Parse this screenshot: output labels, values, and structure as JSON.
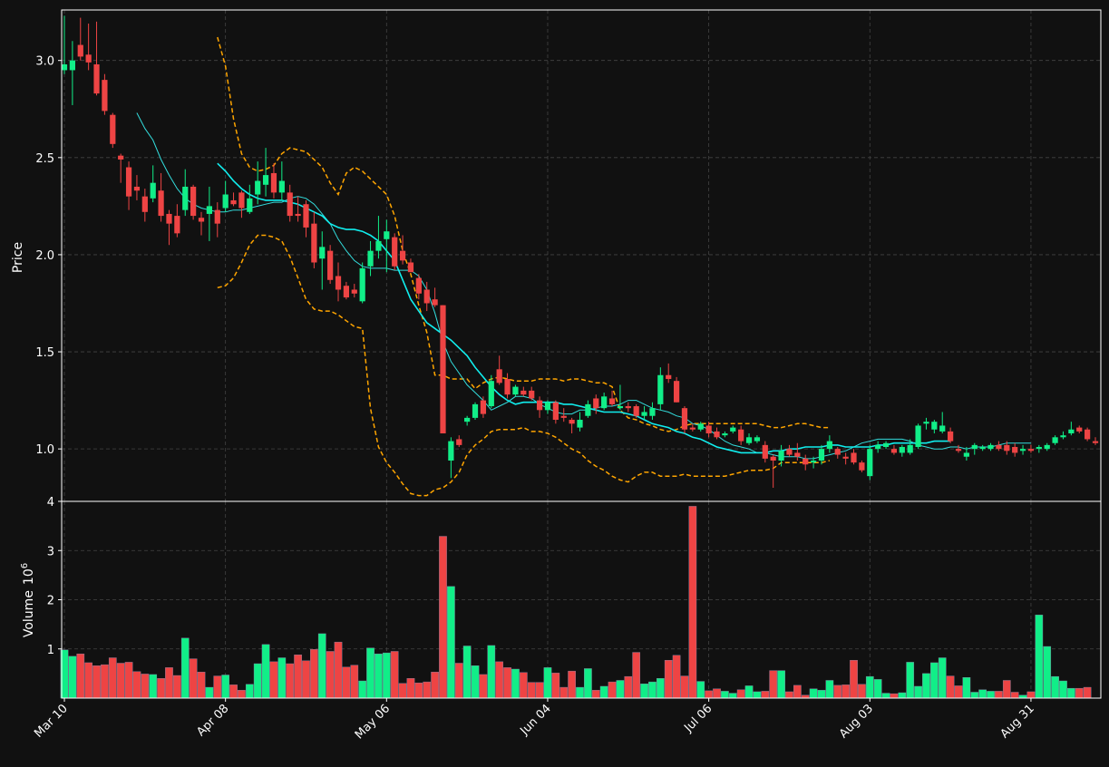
{
  "chart_data": {
    "type": "candlestick",
    "panels": [
      {
        "name": "price",
        "ylabel": "Price",
        "ylim": [
          0.73,
          3.26
        ],
        "yticks": [
          1.0,
          1.5,
          2.0,
          2.5,
          3.0
        ],
        "ytick_labels": [
          "1.0",
          "1.5",
          "2.0",
          "2.5",
          "3.0"
        ]
      },
      {
        "name": "volume",
        "ylabel": "Volume",
        "ylabel_suffix": "10",
        "ylabel_exp": "6",
        "ylim": [
          0,
          4.0
        ],
        "yticks": [
          1,
          2,
          3,
          4
        ],
        "ytick_labels": [
          "1",
          "2",
          "3",
          "4"
        ]
      }
    ],
    "grid": true,
    "x_tick_labels": [
      {
        "index": 0,
        "label": "Mar 10"
      },
      {
        "index": 20,
        "label": "Apr 08"
      },
      {
        "index": 40,
        "label": "May 06"
      },
      {
        "index": 60,
        "label": "Jun 04"
      },
      {
        "index": 80,
        "label": "Jul 06"
      },
      {
        "index": 100,
        "label": "Aug 03"
      },
      {
        "index": 120,
        "label": "Aug 31"
      }
    ],
    "colors": {
      "up": "#11ee88",
      "down": "#ee4444",
      "ma_fast": "#33dddd",
      "ma_slow": "#11eeee",
      "bands": "#ffa500",
      "background": "#111111",
      "grid": "#444444"
    },
    "ohlc": [
      [
        2.95,
        3.23,
        2.93,
        2.98
      ],
      [
        2.95,
        3.1,
        2.77,
        3.0
      ],
      [
        3.08,
        3.22,
        3.0,
        3.02
      ],
      [
        3.03,
        3.19,
        2.95,
        2.99
      ],
      [
        2.98,
        3.2,
        2.82,
        2.83
      ],
      [
        2.9,
        2.93,
        2.72,
        2.74
      ],
      [
        2.72,
        2.73,
        2.55,
        2.57
      ],
      [
        2.51,
        2.52,
        2.37,
        2.49
      ],
      [
        2.45,
        2.48,
        2.23,
        2.3
      ],
      [
        2.35,
        2.41,
        2.28,
        2.33
      ],
      [
        2.3,
        2.34,
        2.17,
        2.22
      ],
      [
        2.29,
        2.46,
        2.27,
        2.37
      ],
      [
        2.33,
        2.42,
        2.17,
        2.2
      ],
      [
        2.21,
        2.23,
        2.05,
        2.16
      ],
      [
        2.2,
        2.26,
        2.09,
        2.11
      ],
      [
        2.23,
        2.44,
        2.2,
        2.35
      ],
      [
        2.35,
        2.36,
        2.18,
        2.2
      ],
      [
        2.19,
        2.22,
        2.1,
        2.17
      ],
      [
        2.21,
        2.35,
        2.07,
        2.25
      ],
      [
        2.23,
        2.27,
        2.09,
        2.16
      ],
      [
        2.24,
        2.38,
        2.22,
        2.31
      ],
      [
        2.28,
        2.32,
        2.25,
        2.26
      ],
      [
        2.32,
        2.33,
        2.19,
        2.24
      ],
      [
        2.22,
        2.36,
        2.21,
        2.29
      ],
      [
        2.31,
        2.48,
        2.26,
        2.38
      ],
      [
        2.36,
        2.55,
        2.3,
        2.41
      ],
      [
        2.42,
        2.47,
        2.29,
        2.32
      ],
      [
        2.32,
        2.48,
        2.28,
        2.38
      ],
      [
        2.32,
        2.36,
        2.17,
        2.2
      ],
      [
        2.21,
        2.3,
        2.17,
        2.2
      ],
      [
        2.26,
        2.28,
        2.09,
        2.14
      ],
      [
        2.16,
        2.22,
        1.93,
        1.96
      ],
      [
        1.98,
        2.12,
        1.82,
        2.04
      ],
      [
        2.02,
        2.05,
        1.85,
        1.87
      ],
      [
        1.89,
        1.96,
        1.76,
        1.82
      ],
      [
        1.84,
        1.86,
        1.77,
        1.78
      ],
      [
        1.82,
        1.85,
        1.78,
        1.8
      ],
      [
        1.76,
        1.96,
        1.75,
        1.93
      ],
      [
        1.94,
        2.07,
        1.89,
        2.02
      ],
      [
        2.02,
        2.2,
        1.98,
        2.07
      ],
      [
        2.08,
        2.18,
        1.91,
        2.12
      ],
      [
        2.09,
        2.11,
        1.92,
        1.94
      ],
      [
        2.02,
        2.1,
        1.95,
        1.97
      ],
      [
        1.96,
        1.98,
        1.91,
        1.91
      ],
      [
        1.88,
        1.9,
        1.77,
        1.8
      ],
      [
        1.82,
        1.86,
        1.71,
        1.75
      ],
      [
        1.77,
        1.83,
        1.73,
        1.74
      ],
      [
        1.74,
        1.74,
        1.08,
        1.08
      ],
      [
        0.94,
        1.06,
        0.85,
        1.04
      ],
      [
        1.05,
        1.07,
        1.01,
        1.02
      ],
      [
        1.14,
        1.17,
        1.12,
        1.16
      ],
      [
        1.16,
        1.24,
        1.15,
        1.23
      ],
      [
        1.25,
        1.27,
        1.16,
        1.18
      ],
      [
        1.22,
        1.38,
        1.21,
        1.35
      ],
      [
        1.41,
        1.48,
        1.33,
        1.34
      ],
      [
        1.36,
        1.39,
        1.26,
        1.28
      ],
      [
        1.28,
        1.33,
        1.27,
        1.32
      ],
      [
        1.3,
        1.32,
        1.27,
        1.28
      ],
      [
        1.3,
        1.32,
        1.25,
        1.26
      ],
      [
        1.25,
        1.27,
        1.16,
        1.2
      ],
      [
        1.2,
        1.25,
        1.18,
        1.24
      ],
      [
        1.24,
        1.25,
        1.13,
        1.15
      ],
      [
        1.17,
        1.21,
        1.14,
        1.16
      ],
      [
        1.15,
        1.16,
        1.08,
        1.13
      ],
      [
        1.11,
        1.19,
        1.09,
        1.15
      ],
      [
        1.17,
        1.25,
        1.16,
        1.23
      ],
      [
        1.26,
        1.28,
        1.18,
        1.21
      ],
      [
        1.21,
        1.29,
        1.2,
        1.27
      ],
      [
        1.26,
        1.3,
        1.22,
        1.23
      ],
      [
        1.21,
        1.33,
        1.2,
        1.22
      ],
      [
        1.22,
        1.24,
        1.19,
        1.21
      ],
      [
        1.22,
        1.23,
        1.16,
        1.17
      ],
      [
        1.17,
        1.22,
        1.15,
        1.19
      ],
      [
        1.17,
        1.24,
        1.15,
        1.21
      ],
      [
        1.23,
        1.42,
        1.2,
        1.38
      ],
      [
        1.38,
        1.44,
        1.34,
        1.36
      ],
      [
        1.35,
        1.37,
        1.24,
        1.24
      ],
      [
        1.21,
        1.22,
        1.08,
        1.1
      ],
      [
        1.11,
        1.13,
        1.09,
        1.1
      ],
      [
        1.1,
        1.14,
        1.09,
        1.13
      ],
      [
        1.12,
        1.14,
        1.06,
        1.08
      ],
      [
        1.09,
        1.11,
        1.05,
        1.06
      ],
      [
        1.07,
        1.09,
        1.06,
        1.08
      ],
      [
        1.09,
        1.12,
        1.08,
        1.11
      ],
      [
        1.1,
        1.12,
        1.02,
        1.04
      ],
      [
        1.03,
        1.08,
        1.02,
        1.06
      ],
      [
        1.04,
        1.07,
        1.03,
        1.06
      ],
      [
        1.02,
        1.04,
        0.93,
        0.95
      ],
      [
        0.96,
        0.97,
        0.8,
        0.94
      ],
      [
        0.94,
        1.02,
        0.91,
        0.99
      ],
      [
        1.0,
        1.02,
        0.96,
        0.97
      ],
      [
        0.98,
        1.03,
        0.94,
        0.96
      ],
      [
        0.95,
        0.97,
        0.89,
        0.92
      ],
      [
        0.93,
        0.96,
        0.9,
        0.94
      ],
      [
        0.94,
        1.02,
        0.92,
        1.0
      ],
      [
        1.0,
        1.07,
        0.98,
        1.04
      ],
      [
        1.0,
        1.01,
        0.95,
        0.97
      ],
      [
        0.96,
        0.98,
        0.92,
        0.95
      ],
      [
        0.98,
        1.0,
        0.92,
        0.93
      ],
      [
        0.93,
        0.94,
        0.88,
        0.89
      ],
      [
        0.86,
        1.02,
        0.84,
        1.0
      ],
      [
        1.0,
        1.04,
        0.98,
        1.02
      ],
      [
        1.01,
        1.04,
        1.0,
        1.03
      ],
      [
        1.0,
        1.02,
        0.97,
        0.98
      ],
      [
        0.98,
        1.02,
        0.96,
        1.01
      ],
      [
        0.98,
        1.05,
        0.97,
        1.02
      ],
      [
        1.01,
        1.13,
        1.0,
        1.12
      ],
      [
        1.13,
        1.16,
        1.1,
        1.14
      ],
      [
        1.1,
        1.15,
        1.08,
        1.14
      ],
      [
        1.09,
        1.19,
        1.08,
        1.12
      ],
      [
        1.09,
        1.11,
        1.03,
        1.04
      ],
      [
        1.0,
        1.02,
        0.98,
        0.99
      ],
      [
        0.96,
        1.01,
        0.94,
        0.98
      ],
      [
        1.0,
        1.03,
        0.97,
        1.02
      ],
      [
        1.0,
        1.02,
        0.99,
        1.01
      ],
      [
        1.0,
        1.03,
        0.99,
        1.02
      ],
      [
        1.02,
        1.04,
        0.99,
        1.0
      ],
      [
        1.02,
        1.04,
        0.97,
        0.99
      ],
      [
        1.01,
        1.03,
        0.96,
        0.98
      ],
      [
        0.99,
        1.02,
        0.97,
        1.0
      ],
      [
        1.0,
        1.02,
        0.98,
        0.99
      ],
      [
        1.0,
        1.02,
        0.98,
        1.01
      ],
      [
        1.0,
        1.03,
        0.99,
        1.02
      ],
      [
        1.03,
        1.07,
        1.02,
        1.06
      ],
      [
        1.06,
        1.09,
        1.05,
        1.07
      ],
      [
        1.08,
        1.14,
        1.07,
        1.1
      ],
      [
        1.11,
        1.12,
        1.08,
        1.09
      ],
      [
        1.1,
        1.11,
        1.04,
        1.05
      ],
      [
        1.04,
        1.06,
        1.02,
        1.03
      ]
    ],
    "volume": [
      0.98,
      0.85,
      0.9,
      0.72,
      0.66,
      0.68,
      0.82,
      0.71,
      0.73,
      0.54,
      0.49,
      0.48,
      0.4,
      0.62,
      0.46,
      1.22,
      0.8,
      0.53,
      0.22,
      0.45,
      0.47,
      0.27,
      0.16,
      0.28,
      0.7,
      1.09,
      0.74,
      0.82,
      0.7,
      0.88,
      0.76,
      0.99,
      1.31,
      0.95,
      1.14,
      0.63,
      0.67,
      0.35,
      1.02,
      0.9,
      0.92,
      0.95,
      0.3,
      0.4,
      0.31,
      0.33,
      0.53,
      3.29,
      2.27,
      0.71,
      1.06,
      0.66,
      0.48,
      1.07,
      0.74,
      0.62,
      0.59,
      0.52,
      0.32,
      0.32,
      0.62,
      0.51,
      0.22,
      0.55,
      0.22,
      0.6,
      0.16,
      0.24,
      0.33,
      0.36,
      0.44,
      0.93,
      0.29,
      0.33,
      0.4,
      0.77,
      0.87,
      0.45,
      3.9,
      0.34,
      0.15,
      0.19,
      0.14,
      0.1,
      0.17,
      0.25,
      0.13,
      0.14,
      0.56,
      0.56,
      0.13,
      0.26,
      0.06,
      0.19,
      0.16,
      0.36,
      0.26,
      0.27,
      0.77,
      0.28,
      0.44,
      0.38,
      0.1,
      0.09,
      0.11,
      0.73,
      0.24,
      0.5,
      0.72,
      0.82,
      0.45,
      0.25,
      0.42,
      0.12,
      0.17,
      0.14,
      0.14,
      0.36,
      0.12,
      0.06,
      0.13,
      1.69,
      1.05,
      0.44,
      0.35,
      0.2,
      0.2,
      0.22
    ],
    "ma_fast": [
      null,
      null,
      null,
      null,
      null,
      null,
      null,
      null,
      null,
      2.73,
      2.65,
      2.59,
      2.49,
      2.41,
      2.34,
      2.29,
      2.26,
      2.24,
      2.23,
      2.22,
      2.22,
      2.23,
      2.23,
      2.24,
      2.25,
      2.26,
      2.27,
      2.27,
      2.29,
      2.3,
      2.29,
      2.26,
      2.21,
      2.16,
      2.08,
      2.02,
      1.97,
      1.94,
      1.93,
      1.93,
      1.93,
      1.92,
      1.92,
      1.92,
      1.89,
      1.82,
      1.7,
      1.55,
      1.45,
      1.39,
      1.33,
      1.29,
      1.25,
      1.2,
      1.22,
      1.24,
      1.27,
      1.27,
      1.26,
      1.23,
      1.21,
      1.19,
      1.18,
      1.18,
      1.2,
      1.2,
      1.21,
      1.22,
      1.22,
      1.23,
      1.25,
      1.25,
      1.23,
      1.21,
      1.2,
      1.19,
      1.17,
      1.16,
      1.13,
      1.12,
      1.1,
      1.07,
      1.04,
      1.02,
      1.01,
      1.0,
      0.98,
      0.98,
      0.97,
      0.96,
      0.96,
      0.96,
      0.95,
      0.95,
      0.96,
      0.97,
      0.98,
      0.99,
      1.01,
      1.03,
      1.04,
      1.05,
      1.05,
      1.05,
      1.05,
      1.04,
      1.02,
      1.01,
      1.0,
      1.0,
      1.01,
      1.01,
      1.0,
      1.01,
      1.01,
      1.01,
      1.02,
      1.03,
      1.03,
      1.03,
      1.03
    ],
    "ma_slow": [
      null,
      null,
      null,
      null,
      null,
      null,
      null,
      null,
      null,
      null,
      null,
      null,
      null,
      null,
      null,
      null,
      null,
      null,
      null,
      2.47,
      2.43,
      2.38,
      2.34,
      2.31,
      2.29,
      2.28,
      2.28,
      2.28,
      2.27,
      2.26,
      2.24,
      2.22,
      2.2,
      2.16,
      2.14,
      2.13,
      2.13,
      2.12,
      2.1,
      2.07,
      2.02,
      1.97,
      1.87,
      1.77,
      1.71,
      1.65,
      1.62,
      1.59,
      1.56,
      1.52,
      1.48,
      1.42,
      1.37,
      1.32,
      1.28,
      1.25,
      1.23,
      1.24,
      1.24,
      1.24,
      1.24,
      1.24,
      1.23,
      1.23,
      1.22,
      1.21,
      1.2,
      1.19,
      1.19,
      1.19,
      1.18,
      1.17,
      1.15,
      1.13,
      1.12,
      1.11,
      1.09,
      1.08,
      1.06,
      1.05,
      1.03,
      1.01,
      1.0,
      0.99,
      0.98,
      0.98,
      0.98,
      0.98,
      0.99,
      0.99,
      1.0,
      1.0,
      1.01,
      1.01,
      1.01,
      1.02,
      1.02,
      1.01,
      1.01,
      1.01,
      1.01,
      1.02,
      1.02,
      1.03,
      1.03,
      1.03,
      1.03,
      1.03,
      1.04,
      1.04,
      1.04
    ],
    "band_upper": [
      null,
      null,
      null,
      null,
      null,
      null,
      null,
      null,
      null,
      null,
      null,
      null,
      null,
      null,
      null,
      null,
      null,
      null,
      null,
      3.12,
      2.97,
      2.7,
      2.52,
      2.45,
      2.43,
      2.44,
      2.46,
      2.52,
      2.55,
      2.54,
      2.53,
      2.49,
      2.45,
      2.37,
      2.31,
      2.42,
      2.45,
      2.43,
      2.39,
      2.35,
      2.31,
      2.2,
      2.02,
      1.9,
      1.74,
      1.6,
      1.38,
      1.38,
      1.36,
      1.36,
      1.36,
      1.31,
      1.34,
      1.36,
      1.37,
      1.36,
      1.35,
      1.35,
      1.35,
      1.36,
      1.36,
      1.36,
      1.35,
      1.36,
      1.36,
      1.35,
      1.34,
      1.34,
      1.32,
      1.2,
      1.16,
      1.15,
      1.13,
      1.12,
      1.1,
      1.09,
      1.1,
      1.12,
      1.13,
      1.13,
      1.13,
      1.13,
      1.13,
      1.13,
      1.13,
      1.13,
      1.13,
      1.12,
      1.11,
      1.11,
      1.12,
      1.13,
      1.13,
      1.12,
      1.11,
      1.11
    ],
    "band_lower": [
      null,
      null,
      null,
      null,
      null,
      null,
      null,
      null,
      null,
      null,
      null,
      null,
      null,
      null,
      null,
      null,
      null,
      null,
      null,
      1.83,
      1.84,
      1.88,
      1.96,
      2.05,
      2.1,
      2.1,
      2.09,
      2.07,
      1.99,
      1.88,
      1.77,
      1.72,
      1.71,
      1.71,
      1.69,
      1.66,
      1.63,
      1.62,
      1.21,
      1.01,
      0.93,
      0.88,
      0.82,
      0.77,
      0.76,
      0.76,
      0.79,
      0.8,
      0.83,
      0.88,
      0.97,
      1.02,
      1.05,
      1.09,
      1.1,
      1.1,
      1.1,
      1.11,
      1.09,
      1.09,
      1.08,
      1.06,
      1.03,
      1.0,
      0.98,
      0.94,
      0.91,
      0.89,
      0.86,
      0.84,
      0.83,
      0.86,
      0.88,
      0.88,
      0.86,
      0.86,
      0.86,
      0.87,
      0.86,
      0.86,
      0.86,
      0.86,
      0.86,
      0.87,
      0.88,
      0.89,
      0.89,
      0.89,
      0.9,
      0.93,
      0.93,
      0.93,
      0.93,
      0.93,
      0.93,
      0.94
    ],
    "band_start_index": 19
  }
}
